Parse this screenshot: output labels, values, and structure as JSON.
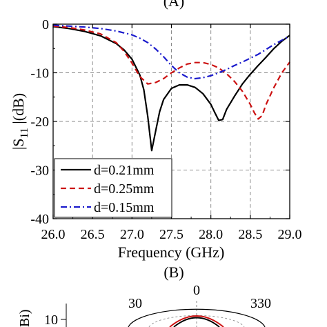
{
  "chart_data": [
    {
      "type": "line",
      "panel_label": "(A)",
      "xlabel": "Frequency (GHz)",
      "ylabel": "|S11|(dB)",
      "ylabel_parts": {
        "main": "|S",
        "sub": "11",
        "tail": " |(dB)"
      },
      "xlim": [
        26.0,
        29.0
      ],
      "ylim": [
        -40,
        0
      ],
      "xticks": [
        26.0,
        26.5,
        27.0,
        27.5,
        28.0,
        28.5,
        29.0
      ],
      "xtick_labels": [
        "26.0",
        "26.5",
        "27.0",
        "27.5",
        "28.0",
        "28.5",
        "29.0"
      ],
      "yticks": [
        0,
        -10,
        -20,
        -30,
        -40
      ],
      "ytick_labels": [
        "0",
        "-10",
        "-20",
        "-30",
        "-40"
      ],
      "grid": true,
      "legend_position": "bottom-left",
      "series": [
        {
          "name": "d=0.21mm",
          "color": "#000000",
          "style": "solid",
          "x": [
            26.0,
            26.2,
            26.4,
            26.6,
            26.8,
            26.9,
            27.0,
            27.1,
            27.15,
            27.2,
            27.25,
            27.3,
            27.35,
            27.4,
            27.5,
            27.6,
            27.7,
            27.8,
            27.9,
            28.0,
            28.05,
            28.1,
            28.15,
            28.2,
            28.3,
            28.4,
            28.5,
            28.6,
            28.7,
            28.8,
            28.9,
            29.0
          ],
          "y": [
            -0.5,
            -0.9,
            -1.5,
            -2.4,
            -4.0,
            -5.3,
            -7.2,
            -10.5,
            -13.5,
            -19.0,
            -26.0,
            -22.0,
            -18.0,
            -15.5,
            -13.2,
            -12.5,
            -12.5,
            -13.0,
            -14.3,
            -16.5,
            -18.2,
            -19.8,
            -19.6,
            -17.5,
            -14.8,
            -12.3,
            -10.3,
            -8.5,
            -6.8,
            -5.0,
            -3.5,
            -2.3
          ]
        },
        {
          "name": "d=0.25mm",
          "color": "#cc1111",
          "style": "dashed",
          "x": [
            26.0,
            26.2,
            26.4,
            26.6,
            26.8,
            26.9,
            27.0,
            27.1,
            27.2,
            27.3,
            27.4,
            27.5,
            27.6,
            27.7,
            27.8,
            27.9,
            28.0,
            28.1,
            28.2,
            28.3,
            28.4,
            28.5,
            28.55,
            28.6,
            28.65,
            28.7,
            28.8,
            28.9,
            29.0
          ],
          "y": [
            -0.4,
            -0.7,
            -1.2,
            -2.0,
            -3.8,
            -5.6,
            -8.0,
            -10.8,
            -12.3,
            -12.0,
            -11.2,
            -10.0,
            -9.0,
            -8.2,
            -7.9,
            -7.9,
            -8.3,
            -9.0,
            -10.2,
            -11.8,
            -13.8,
            -16.5,
            -18.2,
            -19.5,
            -18.8,
            -16.5,
            -13.0,
            -10.0,
            -7.8
          ]
        },
        {
          "name": "d=0.15mm",
          "color": "#1a1acc",
          "style": "dashdot",
          "x": [
            26.0,
            26.2,
            26.4,
            26.6,
            26.8,
            27.0,
            27.1,
            27.2,
            27.3,
            27.4,
            27.5,
            27.6,
            27.7,
            27.8,
            27.9,
            28.0,
            28.1,
            28.2,
            28.3,
            28.4,
            28.5,
            28.6,
            28.7,
            28.8,
            28.9,
            29.0
          ],
          "y": [
            -0.2,
            -0.4,
            -0.6,
            -0.9,
            -1.4,
            -2.2,
            -2.9,
            -3.8,
            -5.1,
            -6.7,
            -8.5,
            -10.0,
            -10.9,
            -11.2,
            -11.0,
            -10.6,
            -10.0,
            -9.3,
            -8.5,
            -7.8,
            -7.0,
            -6.2,
            -5.2,
            -4.2,
            -3.3,
            -2.5
          ]
        }
      ]
    },
    {
      "type": "polar",
      "panel_label": "(B)",
      "angle_labels": [
        "30",
        "0",
        "330"
      ],
      "radial_tick_labels": [
        "10"
      ],
      "ylabel_fragment": "Bi)"
    }
  ]
}
